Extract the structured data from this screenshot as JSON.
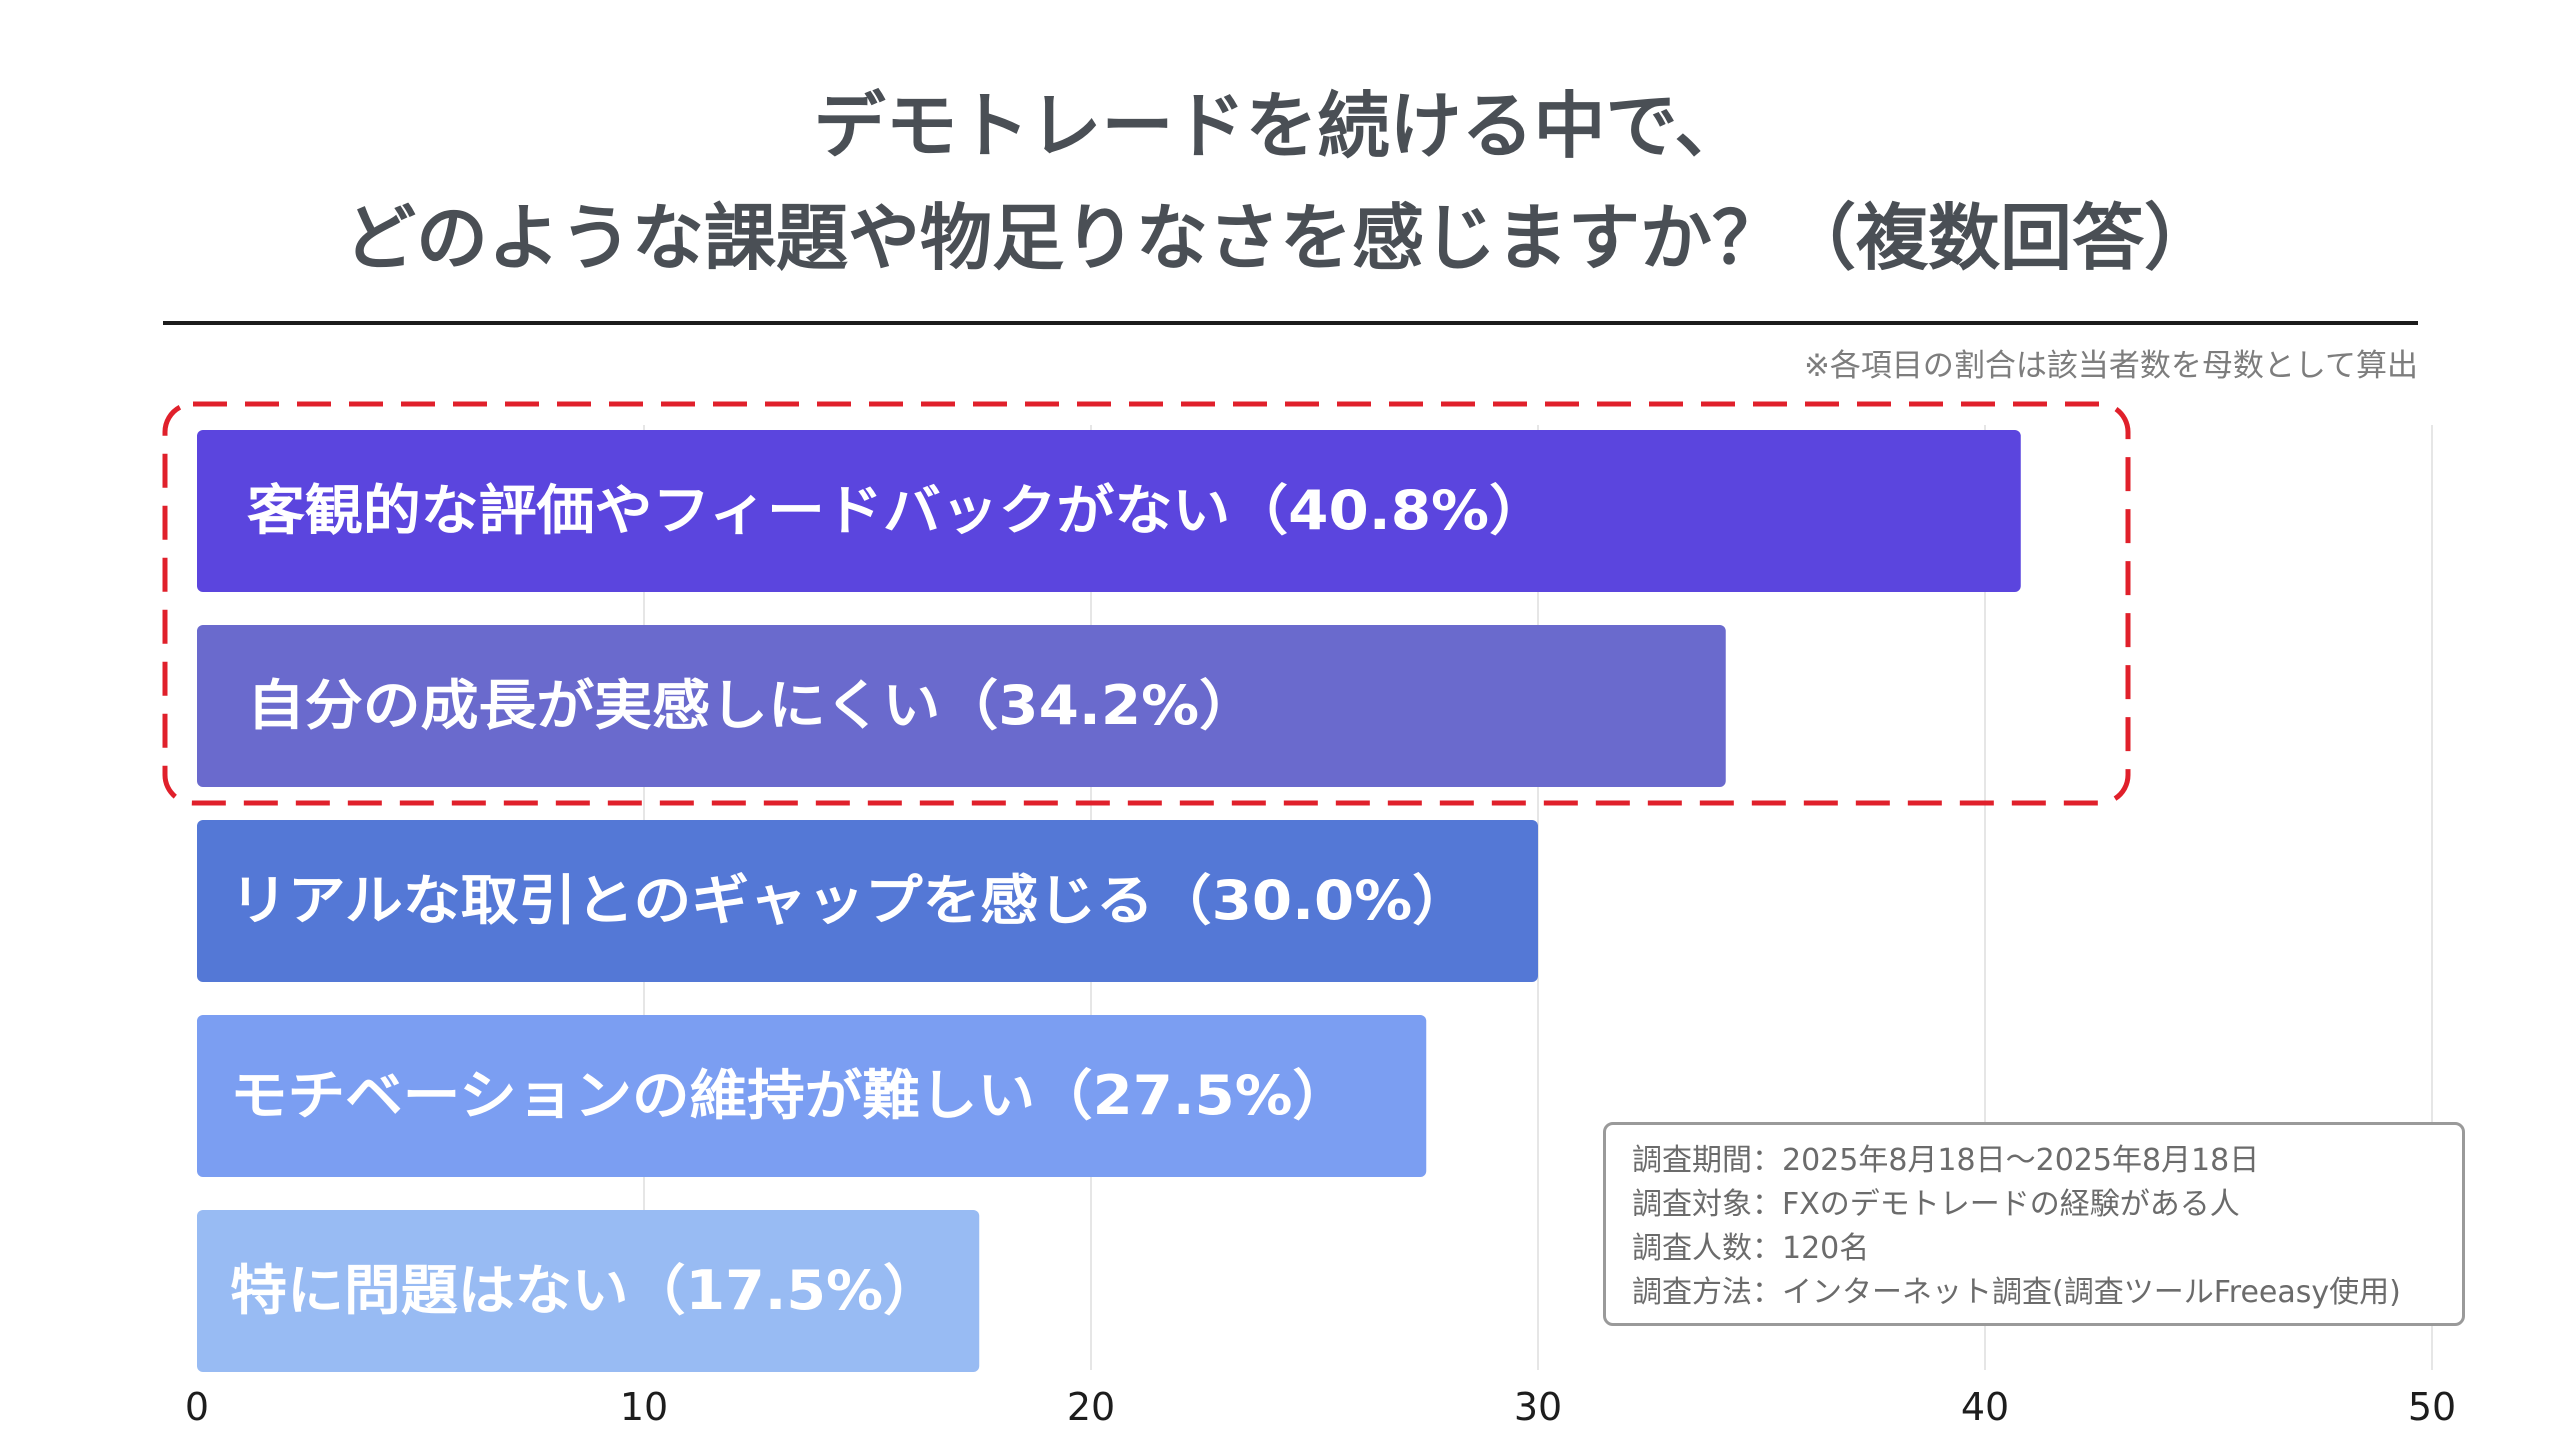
{
  "chart_data": {
    "type": "bar",
    "orientation": "horizontal",
    "title_lines": [
      "デモトレードを続ける中で、",
      "どのような課題や物足りなさを感じますか？（複数回答）"
    ],
    "note": "※各項目の割合は該当者数を母数として算出",
    "categories": [
      "客観的な評価やフィードバックがない（40.8%）",
      "自分の成長が実感しにくい（34.2%）",
      "リアルな取引とのギャップを感じる（30.0%）",
      "モチベーションの維持が難しい（27.5%）",
      "特に問題はない（17.5%）"
    ],
    "values": [
      40.8,
      34.2,
      30.0,
      27.5,
      17.5
    ],
    "bar_colors": [
      "#5b45de",
      "#6a6acd",
      "#5478d6",
      "#7b9ef2",
      "#98bbf3"
    ],
    "xlim": [
      0,
      50
    ],
    "xticks": [
      0,
      10,
      20,
      30,
      40,
      50
    ],
    "grid": "vertical",
    "highlight": {
      "first_index": 0,
      "last_index": 1,
      "color": "#e0202b",
      "style": "dashed"
    },
    "legend": "none"
  },
  "survey_info": {
    "lines": [
      "調査期間：2025年8月18日〜2025年8月18日",
      "調査対象：FXのデモトレードの経験がある人",
      "調査人数：120名",
      "調査方法：インターネット調査(調査ツールFreeasy使用)"
    ]
  }
}
